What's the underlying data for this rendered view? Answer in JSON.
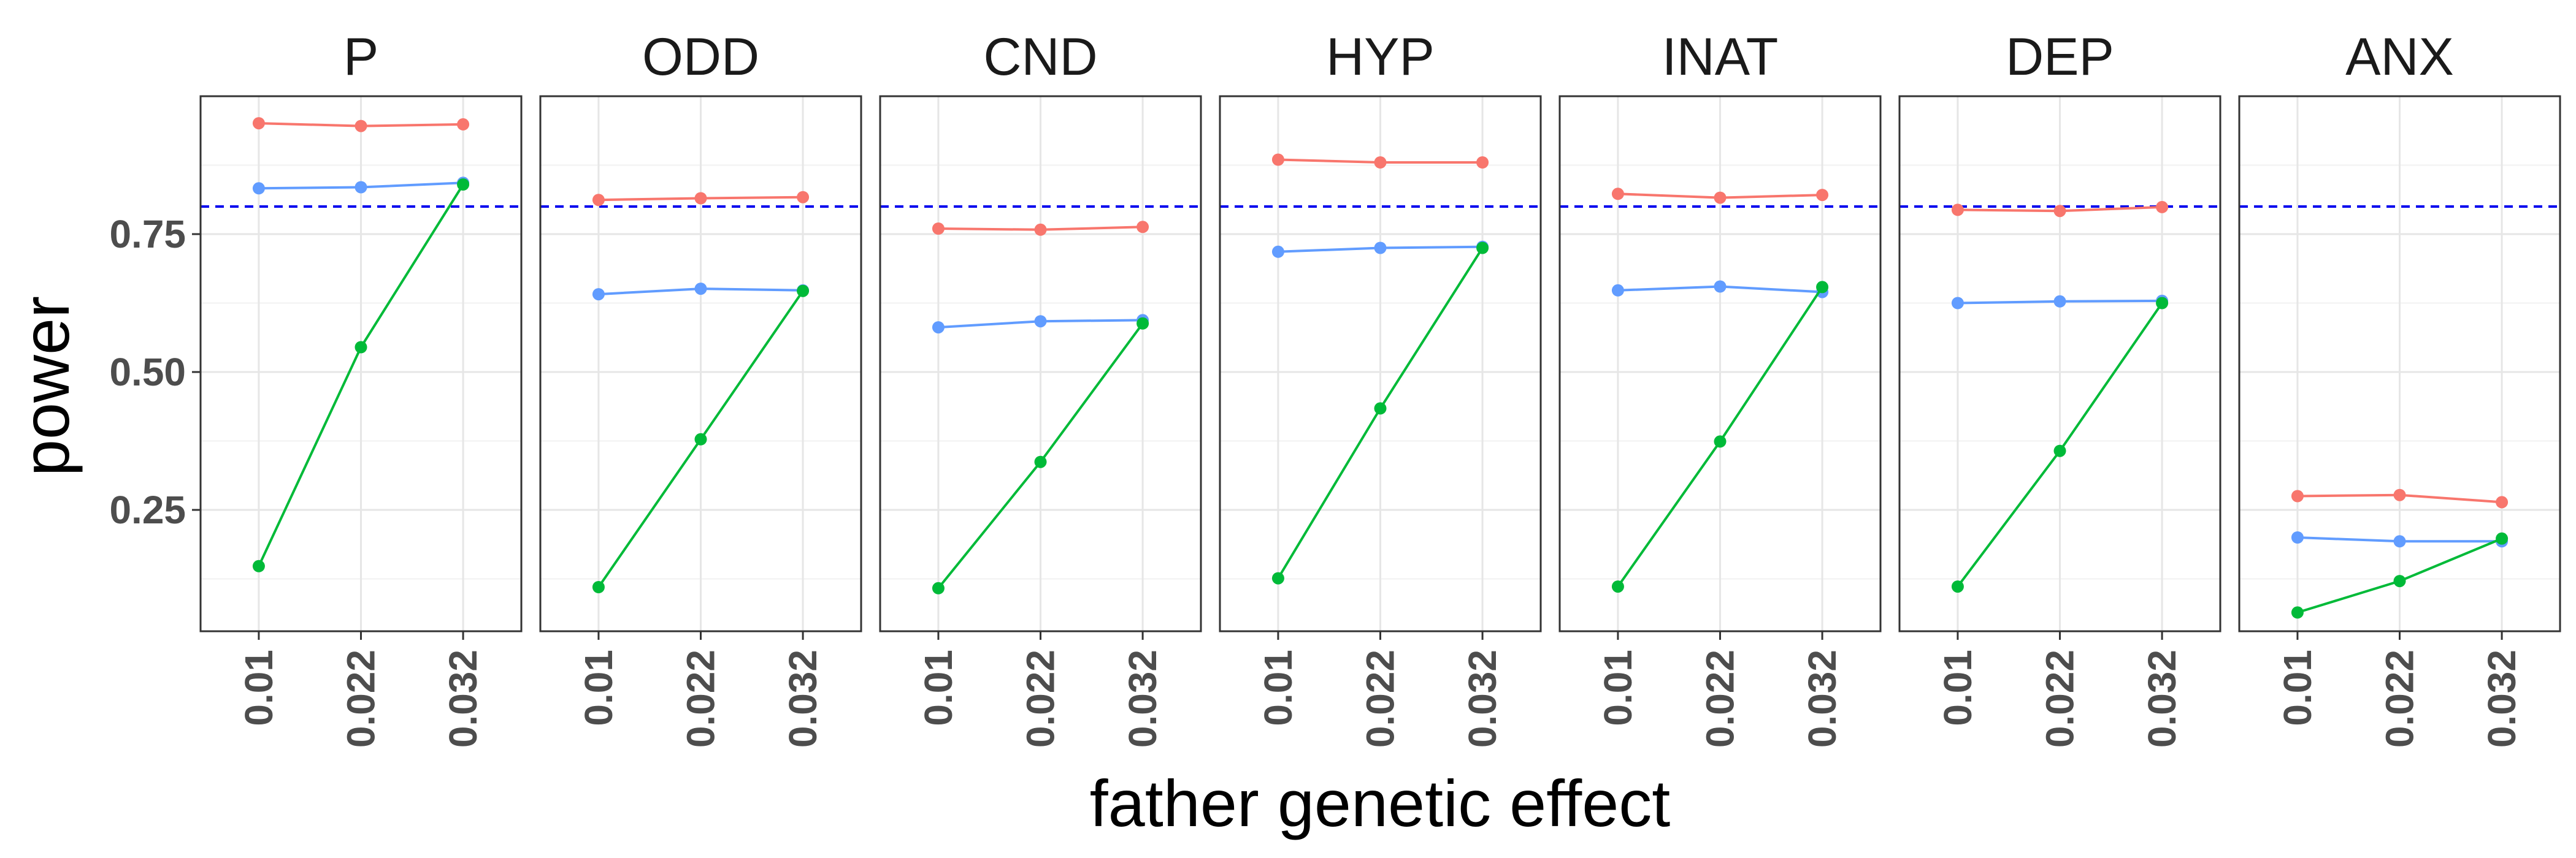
{
  "chart_data": {
    "type": "line",
    "xlabel": "father genetic effect",
    "ylabel": "power",
    "x": [
      "0.01",
      "0.022",
      "0.032"
    ],
    "ylim": [
      0.03,
      1.0
    ],
    "yticks": [
      "0.25",
      "0.50",
      "0.75"
    ],
    "ytick_values": [
      0.25,
      0.5,
      0.75
    ],
    "grid": true,
    "reference_line": {
      "y": 0.8,
      "style": "dashed",
      "color": "#0000ee"
    },
    "series_colors": [
      "#f8766d",
      "#619cff",
      "#00ba38"
    ],
    "facets": [
      {
        "title": "P",
        "series": [
          {
            "values": [
              0.951,
              0.946,
              0.949
            ]
          },
          {
            "values": [
              0.833,
              0.835,
              0.843
            ]
          },
          {
            "values": [
              0.148,
              0.545,
              0.84
            ]
          }
        ]
      },
      {
        "title": "ODD",
        "series": [
          {
            "values": [
              0.812,
              0.815,
              0.817
            ]
          },
          {
            "values": [
              0.641,
              0.651,
              0.648
            ]
          },
          {
            "values": [
              0.11,
              0.378,
              0.647
            ]
          }
        ]
      },
      {
        "title": "CND",
        "series": [
          {
            "values": [
              0.76,
              0.758,
              0.763
            ]
          },
          {
            "values": [
              0.581,
              0.592,
              0.594
            ]
          },
          {
            "values": [
              0.108,
              0.337,
              0.588
            ]
          }
        ]
      },
      {
        "title": "HYP",
        "series": [
          {
            "values": [
              0.885,
              0.88,
              0.88
            ]
          },
          {
            "values": [
              0.718,
              0.725,
              0.727
            ]
          },
          {
            "values": [
              0.126,
              0.434,
              0.725
            ]
          }
        ]
      },
      {
        "title": "INAT",
        "series": [
          {
            "values": [
              0.823,
              0.816,
              0.821
            ]
          },
          {
            "values": [
              0.648,
              0.655,
              0.645
            ]
          },
          {
            "values": [
              0.111,
              0.374,
              0.654
            ]
          }
        ]
      },
      {
        "title": "DEP",
        "series": [
          {
            "values": [
              0.794,
              0.792,
              0.799
            ]
          },
          {
            "values": [
              0.625,
              0.628,
              0.629
            ]
          },
          {
            "values": [
              0.111,
              0.357,
              0.625
            ]
          }
        ]
      },
      {
        "title": "ANX",
        "series": [
          {
            "values": [
              0.275,
              0.277,
              0.264
            ]
          },
          {
            "values": [
              0.2,
              0.193,
              0.193
            ]
          },
          {
            "values": [
              0.064,
              0.121,
              0.198
            ]
          }
        ]
      }
    ]
  }
}
